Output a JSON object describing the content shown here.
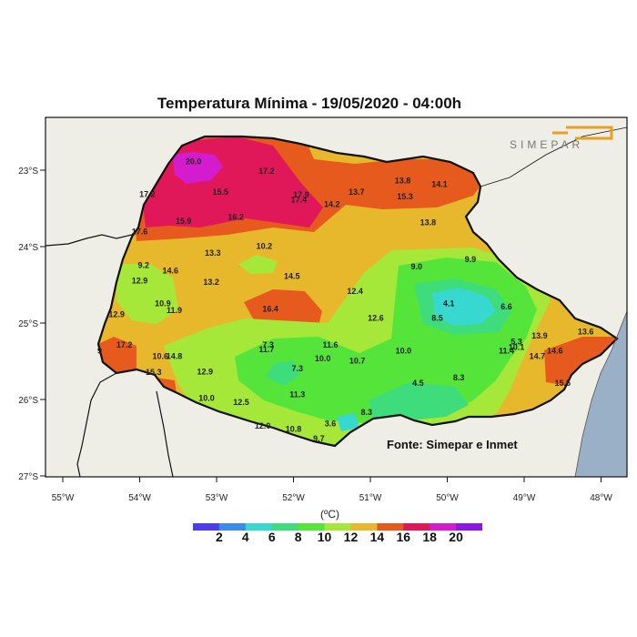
{
  "title": "Temperatura Mínima - 19/05/2020 - 04:00h",
  "source": "Fonte: Simepar e Inmet",
  "logo_text": "SIMEPAR",
  "unit": "(ºC)",
  "lat_labels": [
    "23°S",
    "24°S",
    "25°S",
    "26°S",
    "27°S"
  ],
  "lon_labels": [
    "55°W",
    "54°W",
    "53°W",
    "52°W",
    "51°W",
    "50°W",
    "49°W",
    "48°W"
  ],
  "legend": {
    "labels": [
      "2",
      "4",
      "6",
      "8",
      "10",
      "12",
      "14",
      "16",
      "18",
      "20"
    ],
    "colors": [
      "#4b3cf0",
      "#3a8ce8",
      "#37d8d0",
      "#3edc7a",
      "#55e53a",
      "#a6e83a",
      "#e8b82c",
      "#e65a1e",
      "#e0185a",
      "#d41ccf",
      "#8c18e8"
    ]
  },
  "stations": [
    {
      "label": "20.0",
      "lon": -53.3,
      "lat": -22.92
    },
    {
      "label": "17.2",
      "lon": -52.35,
      "lat": -23.05
    },
    {
      "label": "15.5",
      "lon": -52.95,
      "lat": -23.32
    },
    {
      "label": "17.2",
      "lon": -53.9,
      "lat": -23.35
    },
    {
      "label": "17.9",
      "lon": -51.9,
      "lat": -23.36
    },
    {
      "label": "17.4",
      "lon": -51.93,
      "lat": -23.42
    },
    {
      "label": "13.7",
      "lon": -51.18,
      "lat": -23.32
    },
    {
      "label": "13.8",
      "lon": -50.58,
      "lat": -23.17
    },
    {
      "label": "14.1",
      "lon": -50.1,
      "lat": -23.22
    },
    {
      "label": "15.3",
      "lon": -50.55,
      "lat": -23.38
    },
    {
      "label": "14.2",
      "lon": -51.5,
      "lat": -23.48
    },
    {
      "label": "16.2",
      "lon": -52.75,
      "lat": -23.65
    },
    {
      "label": "15.9",
      "lon": -53.43,
      "lat": -23.7
    },
    {
      "label": "17.6",
      "lon": -54.0,
      "lat": -23.84
    },
    {
      "label": "13.8",
      "lon": -50.25,
      "lat": -23.72
    },
    {
      "label": "13.3",
      "lon": -53.05,
      "lat": -24.12
    },
    {
      "label": "10.2",
      "lon": -52.38,
      "lat": -24.03
    },
    {
      "label": "9.2",
      "lon": -53.95,
      "lat": -24.28
    },
    {
      "label": "14.6",
      "lon": -53.6,
      "lat": -24.35
    },
    {
      "label": "9.9",
      "lon": -49.7,
      "lat": -24.2
    },
    {
      "label": "9.0",
      "lon": -50.4,
      "lat": -24.3
    },
    {
      "label": "14.5",
      "lon": -52.02,
      "lat": -24.42
    },
    {
      "label": "12.9",
      "lon": -54.0,
      "lat": -24.48
    },
    {
      "label": "13.2",
      "lon": -53.07,
      "lat": -24.5
    },
    {
      "label": "12.4",
      "lon": -51.2,
      "lat": -24.62
    },
    {
      "label": "10.9",
      "lon": -53.7,
      "lat": -24.78
    },
    {
      "label": "4.1",
      "lon": -49.98,
      "lat": -24.78
    },
    {
      "label": "6.6",
      "lon": -49.23,
      "lat": -24.82
    },
    {
      "label": "11.9",
      "lon": -53.55,
      "lat": -24.87
    },
    {
      "label": "16.4",
      "lon": -52.3,
      "lat": -24.85
    },
    {
      "label": "12.9",
      "lon": -54.3,
      "lat": -24.92
    },
    {
      "label": "8.5",
      "lon": -50.13,
      "lat": -24.97
    },
    {
      "label": "12.6",
      "lon": -50.93,
      "lat": -24.97
    },
    {
      "label": "17.2",
      "lon": -54.2,
      "lat": -25.32
    },
    {
      "label": "9",
      "lon": -54.52,
      "lat": -25.4
    },
    {
      "label": "7.3",
      "lon": -52.33,
      "lat": -25.32
    },
    {
      "label": "11.7",
      "lon": -52.35,
      "lat": -25.38
    },
    {
      "label": "11.6",
      "lon": -51.52,
      "lat": -25.32
    },
    {
      "label": "5.3",
      "lon": -49.1,
      "lat": -25.28
    },
    {
      "label": "13.9",
      "lon": -48.8,
      "lat": -25.2
    },
    {
      "label": "13.6",
      "lon": -48.2,
      "lat": -25.15
    },
    {
      "label": "10.1",
      "lon": -49.1,
      "lat": -25.35
    },
    {
      "label": "11.4",
      "lon": -49.23,
      "lat": -25.4
    },
    {
      "label": "10.0",
      "lon": -50.57,
      "lat": -25.4
    },
    {
      "label": "10.6",
      "lon": -53.73,
      "lat": -25.47
    },
    {
      "label": "14.8",
      "lon": -53.55,
      "lat": -25.47
    },
    {
      "label": "10.0",
      "lon": -51.62,
      "lat": -25.5
    },
    {
      "label": "10.7",
      "lon": -51.17,
      "lat": -25.53
    },
    {
      "label": "14.6",
      "lon": -48.6,
      "lat": -25.4
    },
    {
      "label": "14.7",
      "lon": -48.83,
      "lat": -25.47
    },
    {
      "label": "7.3",
      "lon": -51.95,
      "lat": -25.63
    },
    {
      "label": "12.9",
      "lon": -53.15,
      "lat": -25.67
    },
    {
      "label": "15.3",
      "lon": -53.82,
      "lat": -25.68
    },
    {
      "label": "8.3",
      "lon": -49.85,
      "lat": -25.75
    },
    {
      "label": "4.5",
      "lon": -50.38,
      "lat": -25.82
    },
    {
      "label": "15.5",
      "lon": -48.5,
      "lat": -25.82
    },
    {
      "label": "11.3",
      "lon": -51.95,
      "lat": -25.97
    },
    {
      "label": "10.0",
      "lon": -53.13,
      "lat": -26.02
    },
    {
      "label": "12.5",
      "lon": -52.68,
      "lat": -26.07
    },
    {
      "label": "8.3",
      "lon": -51.05,
      "lat": -26.2
    },
    {
      "label": "3.6",
      "lon": -51.52,
      "lat": -26.35
    },
    {
      "label": "12.0",
      "lon": -52.4,
      "lat": -26.38
    },
    {
      "label": "10.8",
      "lon": -52.0,
      "lat": -26.42
    },
    {
      "label": "9.7",
      "lon": -51.67,
      "lat": -26.55
    }
  ]
}
